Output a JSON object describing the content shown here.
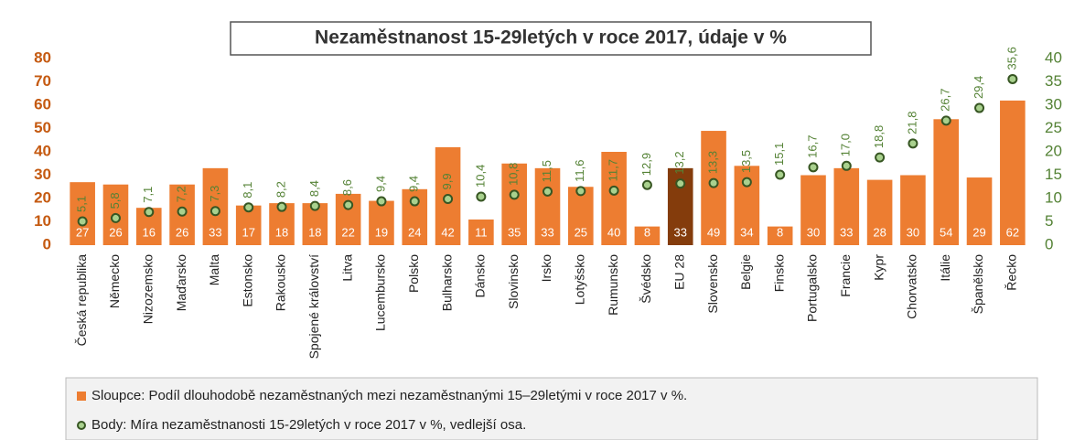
{
  "chart_data": {
    "type": "bar",
    "title": "Nezaměstnanost 15-29letých v roce 2017, údaje v %",
    "categories": [
      "Česká republika",
      "Německo",
      "Nizozemsko",
      "Maďarsko",
      "Malta",
      "Estonsko",
      "Rakousko",
      "Spojené království",
      "Litva",
      "Lucembursko",
      "Polsko",
      "Bulharsko",
      "Dánsko",
      "Slovinsko",
      "Irsko",
      "Lotyšsko",
      "Rumunsko",
      "Švédsko",
      "EU 28",
      "Slovensko",
      "Belgie",
      "Finsko",
      "Portugalsko",
      "Francie",
      "Kypr",
      "Chorvatsko",
      "Itálie",
      "Španělsko",
      "Řecko"
    ],
    "series": [
      {
        "name": "Sloupce: Podíl dlouhodobě nezaměstnaných  mezi nezaměstnanými 15–29letými v roce 2017 v %.",
        "type": "bar",
        "color": "#ed7d31",
        "colors": [
          "#ed7d31",
          "#ed7d31",
          "#ed7d31",
          "#ed7d31",
          "#ed7d31",
          "#ed7d31",
          "#ed7d31",
          "#ed7d31",
          "#ed7d31",
          "#ed7d31",
          "#ed7d31",
          "#ed7d31",
          "#ed7d31",
          "#ed7d31",
          "#ed7d31",
          "#ed7d31",
          "#ed7d31",
          "#ed7d31",
          "#843c0c",
          "#ed7d31",
          "#ed7d31",
          "#ed7d31",
          "#ed7d31",
          "#ed7d31",
          "#ed7d31",
          "#ed7d31",
          "#ed7d31",
          "#ed7d31",
          "#ed7d31"
        ],
        "values": [
          27,
          26,
          16,
          26,
          33,
          17,
          18,
          18,
          22,
          19,
          24,
          42,
          11,
          35,
          33,
          25,
          40,
          8,
          33,
          49,
          34,
          8,
          30,
          33,
          28,
          30,
          54,
          29,
          62
        ]
      },
      {
        "name": "Body: Míra nezaměstnanosti 15-29letých v roce 2017 v %, vedlejší osa.",
        "type": "scatter",
        "axis": "y2",
        "color": "#a9d18e",
        "values": [
          5.1,
          5.8,
          7.1,
          7.2,
          7.3,
          8.1,
          8.2,
          8.4,
          8.6,
          9.4,
          9.4,
          9.9,
          10.4,
          10.8,
          11.5,
          11.6,
          11.7,
          12.9,
          13.2,
          13.3,
          13.5,
          15.1,
          16.7,
          17.0,
          18.8,
          21.8,
          26.7,
          29.4,
          35.6
        ],
        "value_labels": [
          "5,1",
          "5,8",
          "7,1",
          "7,2",
          "7,3",
          "8,1",
          "8,2",
          "8,4",
          "8,6",
          "9,4",
          "9,4",
          "9,9",
          "10,4",
          "10,8",
          "11,5",
          "11,6",
          "11,7",
          "12,9",
          "13,2",
          "13,3",
          "13,5",
          "15,1",
          "16,7",
          "17,0",
          "18,8",
          "21,8",
          "26,7",
          "29,4",
          "35,6"
        ]
      }
    ],
    "ylim": [
      0,
      80
    ],
    "yticks": [
      0,
      10,
      20,
      30,
      40,
      50,
      60,
      70,
      80
    ],
    "y2lim": [
      0,
      40
    ],
    "y2ticks": [
      0,
      5,
      10,
      15,
      20,
      25,
      30,
      35,
      40
    ]
  }
}
